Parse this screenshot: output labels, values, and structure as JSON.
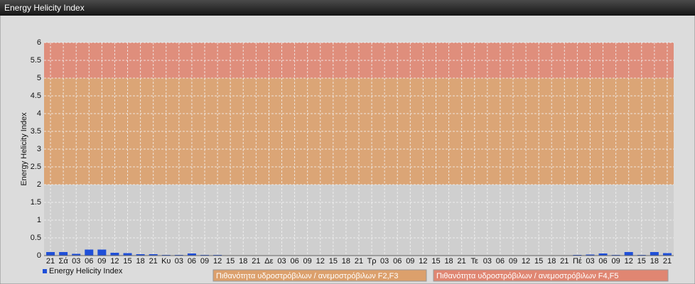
{
  "header": {
    "title": "Energy Helicity Index"
  },
  "chart_data": {
    "type": "bar",
    "y_label": "Energy Helicity Index",
    "categories": [
      "21",
      "Σά",
      "03",
      "06",
      "09",
      "12",
      "15",
      "18",
      "21",
      "Κυ",
      "03",
      "06",
      "09",
      "12",
      "15",
      "18",
      "21",
      "Δε",
      "03",
      "06",
      "09",
      "12",
      "15",
      "18",
      "21",
      "Τρ",
      "03",
      "06",
      "09",
      "12",
      "15",
      "18",
      "21",
      "Τε",
      "03",
      "06",
      "09",
      "12",
      "15",
      "18",
      "21",
      "Πέ",
      "03",
      "06",
      "09",
      "12",
      "15",
      "18",
      "21"
    ],
    "series": [
      {
        "name": "Energy Helicity Index",
        "color": "#1f4fd8",
        "values": [
          0.1,
          0.1,
          0.05,
          0.17,
          0.17,
          0.08,
          0.07,
          0.04,
          0.04,
          0.02,
          0.02,
          0.06,
          0.02,
          0.02,
          0.01,
          0.01,
          0.01,
          0.01,
          0.01,
          0.01,
          0.01,
          0.01,
          0.01,
          0.01,
          0.01,
          0.01,
          0.01,
          0.01,
          0.01,
          0.01,
          0.01,
          0.01,
          0.01,
          0.01,
          0.01,
          0.01,
          0.01,
          0.01,
          0.01,
          0.01,
          0.01,
          0.02,
          0.03,
          0.06,
          0.02,
          0.1,
          0.02,
          0.1,
          0.07
        ]
      }
    ],
    "bands": [
      {
        "from": 2,
        "to": 5,
        "label": "Πιθανότητα υδροστρόβιλων / ανεμοστρόβιλων F2,F3",
        "color": "#dca06c"
      },
      {
        "from": 5,
        "to": 6,
        "label": "Πιθανότητα υδροστρόβιλων / ανεμοστρόβιλων F4,F5",
        "color": "#e08672"
      }
    ],
    "ylim": [
      0,
      6
    ],
    "yticks": [
      0,
      0.5,
      1,
      1.5,
      2,
      2.5,
      3,
      3.5,
      4,
      4.5,
      5,
      5.5,
      6
    ],
    "grid": true
  }
}
